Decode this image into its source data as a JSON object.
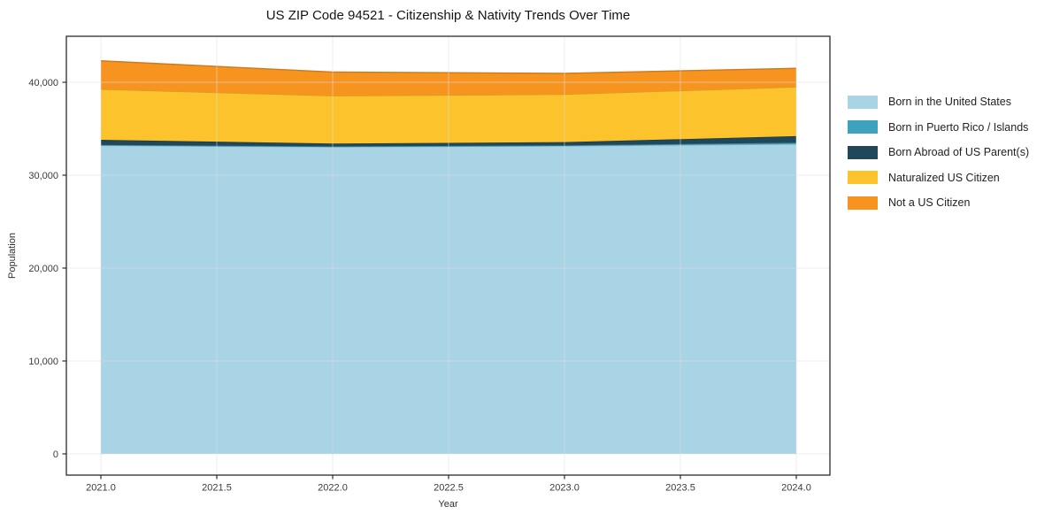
{
  "chart_data": {
    "type": "area",
    "stacked": true,
    "title": "US ZIP Code 94521 - Citizenship & Nativity Trends Over Time",
    "xlabel": "Year",
    "ylabel": "Population",
    "x": [
      2021,
      2022,
      2023,
      2024
    ],
    "series": [
      {
        "name": "Born in the United States",
        "color": "#a8d4e6",
        "values": [
          33200,
          33050,
          33150,
          33350
        ]
      },
      {
        "name": "Born in Puerto Rico / Islands",
        "color": "#3fa2bd",
        "values": [
          60,
          50,
          60,
          150
        ]
      },
      {
        "name": "Born Abroad of US Parent(s)",
        "color": "#20485a",
        "values": [
          550,
          300,
          350,
          700
        ]
      },
      {
        "name": "Naturalized US Citizen",
        "color": "#fcc32c",
        "values": [
          5450,
          5150,
          5150,
          5300
        ]
      },
      {
        "name": "Not a US Citizen",
        "color": "#f79420",
        "values": [
          3050,
          2550,
          2250,
          2000
        ]
      }
    ],
    "x_ticks": [
      {
        "value": 2021.0,
        "label": "2021.0"
      },
      {
        "value": 2021.5,
        "label": "2021.5"
      },
      {
        "value": 2022.0,
        "label": "2022.0"
      },
      {
        "value": 2022.5,
        "label": "2022.5"
      },
      {
        "value": 2023.0,
        "label": "2023.0"
      },
      {
        "value": 2023.5,
        "label": "2023.5"
      },
      {
        "value": 2024.0,
        "label": "2024.0"
      }
    ],
    "y_ticks": [
      {
        "value": 0,
        "label": "0"
      },
      {
        "value": 10000,
        "label": "10,000"
      },
      {
        "value": 20000,
        "label": "20,000"
      },
      {
        "value": 30000,
        "label": "30,000"
      },
      {
        "value": 40000,
        "label": "40,000"
      }
    ],
    "ylim": [
      -2200,
      45000
    ],
    "xlim": [
      2020.85,
      2024.15
    ],
    "grid": true,
    "legend_position": "right",
    "grid_color": "#dcdcdc",
    "axis_color": "#2b2b2b",
    "tick_label_color": "#3a3a3a"
  }
}
